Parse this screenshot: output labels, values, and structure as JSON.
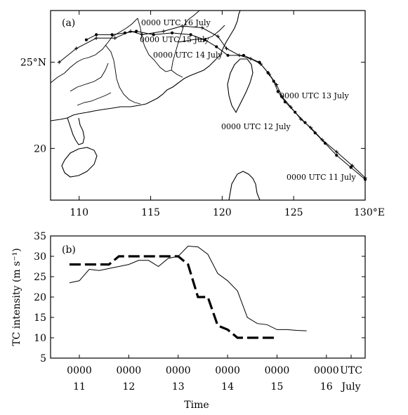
{
  "chart_data": [
    {
      "type": "map-track",
      "panel_label": "(a)",
      "x_ticks": [
        "110",
        "115",
        "120",
        "125",
        "130°E"
      ],
      "x_tick_values": [
        110,
        115,
        120,
        125,
        130
      ],
      "y_ticks": [
        "25°N",
        "20"
      ],
      "y_tick_values": [
        25,
        20
      ],
      "xlim": [
        108,
        130
      ],
      "ylim": [
        17,
        28
      ],
      "annotations": [
        {
          "text": "0000  UTC  16  July"
        },
        {
          "text": "0000  UTC  15  July"
        },
        {
          "text": "0000  UTC  14  July"
        },
        {
          "text": "0000  UTC  13  July"
        },
        {
          "text": "0000  UTC  12  July"
        },
        {
          "text": "0000  UTC  11  July"
        }
      ],
      "series": [
        {
          "marker": "dot",
          "lon": [
            130.0,
            129.0,
            128.0,
            127.2,
            126.5,
            125.8,
            125.1,
            124.4,
            123.9,
            123.6,
            123.2,
            122.6,
            121.5,
            120.4,
            119.6,
            118.8,
            117.8,
            116.5,
            115.2,
            114.0,
            113.2,
            112.3,
            111.2,
            110.5
          ],
          "lat": [
            18.2,
            18.9,
            19.6,
            20.3,
            20.9,
            21.5,
            22.1,
            22.7,
            23.3,
            23.9,
            24.4,
            25.0,
            25.4,
            25.4,
            25.9,
            26.3,
            26.6,
            26.7,
            26.6,
            26.8,
            26.7,
            26.6,
            26.6,
            26.3
          ]
        },
        {
          "marker": "plus",
          "lon": [
            130.0,
            129.1,
            128.0,
            127.0,
            126.2,
            125.5,
            124.8,
            124.2,
            123.8,
            123.3,
            122.7,
            122.0,
            121.2,
            120.3,
            119.7,
            118.6,
            117.2,
            115.9,
            114.4,
            113.6,
            112.5,
            111.2,
            109.8,
            108.6
          ],
          "lat": [
            18.3,
            19.0,
            19.8,
            20.5,
            21.2,
            21.7,
            22.4,
            23.0,
            23.7,
            24.3,
            24.9,
            25.2,
            25.4,
            25.8,
            26.5,
            27.0,
            27.1,
            26.8,
            26.6,
            26.8,
            26.4,
            26.4,
            25.8,
            25.0
          ]
        }
      ]
    },
    {
      "type": "line",
      "panel_label": "(b)",
      "xlabel": "Time",
      "ylabel": "TC intensity (m s⁻¹)",
      "ylim": [
        5,
        35
      ],
      "y_ticks": [
        5,
        10,
        15,
        20,
        25,
        30,
        35
      ],
      "x_ticks": [
        {
          "value": 0,
          "top": "0000",
          "bottom": "11"
        },
        {
          "value": 1,
          "top": "0000",
          "bottom": "12"
        },
        {
          "value": 2,
          "top": "0000",
          "bottom": "13"
        },
        {
          "value": 3,
          "top": "0000",
          "bottom": "14"
        },
        {
          "value": 4,
          "top": "0000",
          "bottom": "15"
        },
        {
          "value": 5,
          "top": "0000",
          "bottom": "16"
        },
        {
          "value": 5.5,
          "top": "UTC",
          "bottom": "July"
        }
      ],
      "xlim": [
        -0.2,
        5.75
      ],
      "series": [
        {
          "style": "solid",
          "x": [
            -0.2,
            0.0,
            0.2,
            0.4,
            0.6,
            0.8,
            1.0,
            1.2,
            1.4,
            1.6,
            1.8,
            2.0,
            2.2,
            2.4,
            2.6,
            2.8,
            3.0,
            3.2,
            3.4,
            3.6,
            3.8,
            4.0,
            4.2,
            4.4,
            4.6,
            4.8,
            5.0,
            5.2,
            5.4,
            5.6
          ],
          "y": [
            23.5,
            24.0,
            26.8,
            26.5,
            27.0,
            27.5,
            28.0,
            29.0,
            29.0,
            27.5,
            29.5,
            30.0,
            32.5,
            32.3,
            30.5,
            25.8,
            24.0,
            21.5,
            15.0,
            13.5,
            13.2,
            12.0,
            12.0,
            11.8,
            11.7,
            null,
            null,
            null,
            null,
            null
          ]
        },
        {
          "style": "dashed",
          "x": [
            -0.2,
            0.0,
            0.2,
            0.4,
            0.6,
            0.8,
            1.0,
            1.2,
            1.4,
            1.6,
            1.8,
            2.0,
            2.2,
            2.4,
            2.6,
            2.8,
            3.0,
            3.2,
            3.4,
            3.6,
            3.8,
            4.0,
            4.2,
            4.4,
            4.6,
            4.8,
            5.0,
            5.2,
            5.4,
            5.6
          ],
          "y": [
            28.0,
            28.0,
            28.0,
            28.0,
            28.0,
            30.0,
            30.0,
            30.0,
            30.0,
            30.0,
            30.0,
            30.0,
            28.0,
            20.0,
            20.0,
            13.0,
            12.0,
            10.0,
            10.0,
            10.0,
            10.0,
            10.0,
            null,
            null,
            null,
            null,
            null,
            null,
            null,
            null
          ]
        }
      ]
    }
  ]
}
